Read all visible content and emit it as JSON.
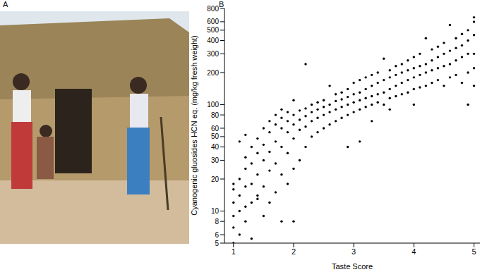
{
  "chart_data": [
    {
      "type": "image",
      "title": "A"
    },
    {
      "type": "scatter",
      "title": "B",
      "x_label": "Taste Score",
      "y_label": "Cyanogenic gluosides HCN eq. (mg/kg fresh weight)",
      "color": "#000000",
      "marker": "circle",
      "log": "y",
      "grid": false,
      "xlim": [
        0.85,
        5.1
      ],
      "xticks": [
        1,
        2,
        3,
        4,
        5
      ],
      "ylim": [
        5,
        800
      ],
      "yticks": [
        5,
        6,
        8,
        10,
        20,
        30,
        40,
        50,
        60,
        80,
        100,
        200,
        300,
        400,
        500,
        600,
        800
      ],
      "x": [
        1.0,
        1.0,
        1.0,
        1.0,
        1.0,
        1.0,
        1.1,
        1.1,
        1.1,
        1.1,
        1.1,
        1.2,
        1.2,
        1.2,
        1.2,
        1.2,
        1.2,
        1.3,
        1.3,
        1.3,
        1.3,
        1.3,
        1.4,
        1.4,
        1.4,
        1.4,
        1.4,
        1.5,
        1.5,
        1.5,
        1.5,
        1.5,
        1.6,
        1.6,
        1.6,
        1.6,
        1.6,
        1.7,
        1.7,
        1.7,
        1.7,
        1.7,
        1.8,
        1.8,
        1.8,
        1.8,
        1.8,
        1.8,
        1.9,
        1.9,
        1.9,
        1.9,
        1.9,
        2.0,
        2.0,
        2.0,
        2.0,
        2.0,
        2.0,
        2.1,
        2.1,
        2.1,
        2.1,
        2.2,
        2.2,
        2.2,
        2.2,
        2.2,
        2.3,
        2.3,
        2.3,
        2.3,
        2.4,
        2.4,
        2.4,
        2.4,
        2.5,
        2.5,
        2.5,
        2.5,
        2.6,
        2.6,
        2.6,
        2.6,
        2.7,
        2.7,
        2.7,
        2.7,
        2.8,
        2.8,
        2.8,
        2.8,
        2.9,
        2.9,
        2.9,
        2.9,
        2.9,
        3.0,
        3.0,
        3.0,
        3.0,
        3.1,
        3.1,
        3.1,
        3.1,
        3.1,
        3.2,
        3.2,
        3.2,
        3.2,
        3.3,
        3.3,
        3.3,
        3.3,
        3.3,
        3.4,
        3.4,
        3.4,
        3.4,
        3.5,
        3.5,
        3.5,
        3.5,
        3.6,
        3.6,
        3.6,
        3.6,
        3.6,
        3.7,
        3.7,
        3.7,
        3.7,
        3.8,
        3.8,
        3.8,
        3.8,
        3.9,
        3.9,
        3.9,
        3.9,
        4.0,
        4.0,
        4.0,
        4.0,
        4.0,
        4.1,
        4.1,
        4.1,
        4.1,
        4.2,
        4.2,
        4.2,
        4.2,
        4.3,
        4.3,
        4.3,
        4.3,
        4.4,
        4.4,
        4.4,
        4.4,
        4.5,
        4.5,
        4.5,
        4.5,
        4.6,
        4.6,
        4.6,
        4.6,
        4.7,
        4.7,
        4.7,
        4.7,
        4.8,
        4.8,
        4.8,
        4.8,
        4.9,
        4.9,
        4.9,
        4.9,
        4.9,
        5.0,
        5.0,
        5.0,
        5.0,
        5.0,
        5.0
      ],
      "values": [
        5,
        7,
        9,
        12,
        16,
        18,
        6,
        10,
        14,
        20,
        45,
        8,
        11,
        17,
        25,
        32,
        52,
        5.5,
        12,
        18,
        28,
        40,
        13,
        14,
        22,
        35,
        48,
        9,
        17,
        30,
        42,
        60,
        12,
        24,
        36,
        55,
        70,
        15,
        28,
        45,
        65,
        80,
        8,
        22,
        40,
        60,
        75,
        90,
        18,
        35,
        55,
        70,
        85,
        8,
        25,
        48,
        65,
        80,
        110,
        30,
        58,
        72,
        88,
        40,
        62,
        78,
        92,
        240,
        50,
        70,
        85,
        100,
        55,
        75,
        90,
        105,
        60,
        80,
        95,
        110,
        65,
        85,
        100,
        150,
        70,
        90,
        108,
        125,
        75,
        95,
        112,
        130,
        40,
        80,
        100,
        118,
        140,
        85,
        105,
        125,
        160,
        45,
        90,
        110,
        130,
        170,
        95,
        115,
        140,
        180,
        70,
        100,
        120,
        150,
        190,
        105,
        125,
        160,
        200,
        100,
        130,
        170,
        270,
        90,
        115,
        140,
        180,
        210,
        120,
        150,
        190,
        230,
        125,
        160,
        200,
        240,
        130,
        170,
        210,
        260,
        100,
        140,
        180,
        220,
        280,
        145,
        190,
        230,
        300,
        150,
        200,
        240,
        420,
        160,
        210,
        260,
        330,
        170,
        220,
        280,
        350,
        150,
        230,
        300,
        380,
        180,
        240,
        320,
        560,
        190,
        260,
        340,
        420,
        160,
        280,
        360,
        460,
        100,
        200,
        300,
        400,
        500,
        150,
        220,
        300,
        450,
        600,
        660
      ]
    }
  ]
}
